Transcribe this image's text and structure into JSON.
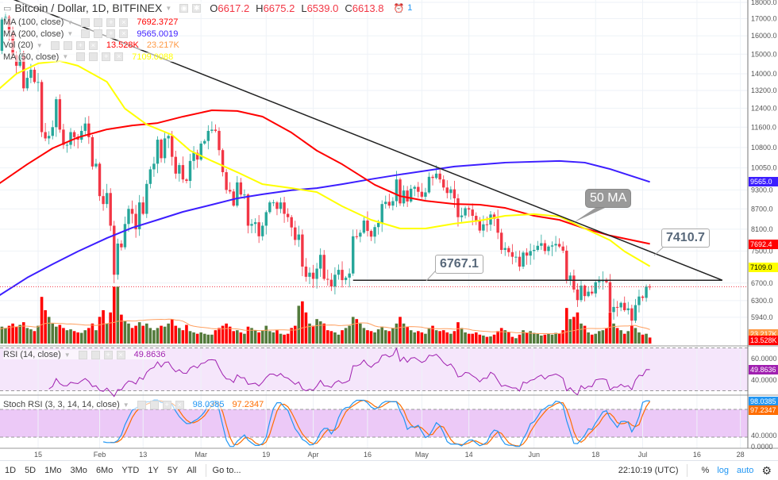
{
  "legend": {
    "symbol": "Bitcoin / Dollar, 1D, BITFINEX",
    "ohlc": {
      "o_label": "O",
      "o": "6617.2",
      "h_label": "H",
      "h": "6675.2",
      "l_label": "L",
      "l": "6539.0",
      "c_label": "C",
      "c": "6613.8"
    },
    "alert_count": "1",
    "indicators": [
      {
        "name": "MA (100, close)",
        "value": "7692.3727",
        "color": "#ff0000"
      },
      {
        "name": "MA (200, close)",
        "value": "9565.0019",
        "color": "#3c1eff"
      },
      {
        "name": "Vol (20)",
        "value": "13.528K",
        "value2": "23.217K",
        "color": "#ff0000",
        "color2": "#ff9944"
      },
      {
        "name": "MA (50, close)",
        "value": "7109.0088",
        "color": "#ffff00"
      }
    ],
    "rsi": {
      "name": "RSI (14, close)",
      "value": "49.8636",
      "color": "#a020b0"
    },
    "stoch": {
      "name": "Stoch RSI (3, 3, 14, 14, close)",
      "k": "98.0385",
      "d": "97.2347",
      "k_color": "#2196f3",
      "d_color": "#ff6d00"
    }
  },
  "price_axis": {
    "ticks": [
      "18000.0",
      "17000.0",
      "16000.0",
      "15000.0",
      "14000.0",
      "13200.0",
      "12400.0",
      "11600.0",
      "10800.0",
      "10050.0",
      "9300.0",
      "8700.0",
      "8100.0",
      "7500.0",
      "6700.0",
      "6300.0",
      "5940.0"
    ],
    "markers": [
      {
        "text": "9565.0",
        "color": "#3c1eff"
      },
      {
        "text": "7692.4",
        "color": "#ff0000"
      },
      {
        "text": "7109.0",
        "color": "#ffff00"
      },
      {
        "text": "23.217K",
        "color": "#ff9944"
      },
      {
        "text": "13.528K",
        "color": "#ff0000"
      }
    ]
  },
  "rsi_axis": {
    "ticks": [
      "60.0000",
      "40.0000"
    ],
    "marker": "49.8636"
  },
  "stoch_axis": {
    "ticks": [
      "40.0000",
      "0.0000"
    ],
    "k_marker": "98.0385",
    "d_marker": "97.2347"
  },
  "time_axis": [
    {
      "label": "15",
      "date": "2018-01-15"
    },
    {
      "label": "Feb",
      "date": "2018-02-01"
    },
    {
      "label": "13",
      "date": "2018-02-13"
    },
    {
      "label": "Mar",
      "date": "2018-03-01"
    },
    {
      "label": "19",
      "date": "2018-03-19"
    },
    {
      "label": "Apr",
      "date": "2018-04-01"
    },
    {
      "label": "16",
      "date": "2018-04-16"
    },
    {
      "label": "May",
      "date": "2018-05-01"
    },
    {
      "label": "14",
      "date": "2018-05-14"
    },
    {
      "label": "Jun",
      "date": "2018-06-01"
    },
    {
      "label": "18",
      "date": "2018-06-18"
    },
    {
      "label": "Jul",
      "date": "2018-07-01"
    },
    {
      "label": "16",
      "date": "2018-07-16"
    },
    {
      "label": "28",
      "date": "2018-07-28"
    }
  ],
  "annotations": {
    "support": "6767.1",
    "trend": "7410.7",
    "ma_note": "50 MA"
  },
  "toolbar": {
    "ranges": [
      "1D",
      "5D",
      "1Mo",
      "3Mo",
      "6Mo",
      "YTD",
      "1Y",
      "5Y",
      "All"
    ],
    "goto": "Go to...",
    "clock": "22:10:19 (UTC)",
    "percent": "%",
    "log": "log",
    "auto": "auto"
  },
  "chart_data": {
    "type": "candlestick",
    "scale": "log",
    "ylim": [
      5800,
      18000
    ],
    "start_date": "2018-01-04",
    "first_open": 15150,
    "closes": [
      15180,
      16950,
      17100,
      16200,
      14950,
      14400,
      14900,
      13300,
      13800,
      14200,
      13600,
      13600,
      11400,
      11150,
      11250,
      11600,
      12800,
      11500,
      10900,
      10900,
      11400,
      11200,
      11100,
      11450,
      11750,
      11200,
      10100,
      10200,
      9100,
      8850,
      9200,
      8200,
      6900,
      7700,
      7600,
      8250,
      8700,
      8550,
      8100,
      8900,
      8550,
      9500,
      10000,
      10200,
      11100,
      10400,
      11150,
      11250,
      10450,
      9850,
      10150,
      9650,
      9600,
      10300,
      10600,
      10350,
      10950,
      11050,
      11450,
      11500,
      11450,
      10700,
      9900,
      9300,
      9250,
      8800,
      9550,
      9150,
      9150,
      8200,
      8250,
      8300,
      7900,
      8200,
      8600,
      8900,
      8900,
      8700,
      8900,
      8550,
      8450,
      8150,
      7800,
      7950,
      7100,
      6850,
      6950,
      6800,
      7050,
      7400,
      6800,
      6780,
      6620,
      6900,
      7020,
      6770,
      6830,
      6930,
      7900,
      7890,
      8000,
      8350,
      8050,
      7890,
      8160,
      8280,
      8850,
      8920,
      8800,
      8940,
      9650,
      8870,
      9280,
      8930,
      9340,
      9400,
      9240,
      9080,
      9220,
      9740,
      9700,
      9850,
      9650,
      9380,
      9200,
      9320,
      9030,
      8450,
      8500,
      8720,
      8680,
      8490,
      8340,
      8060,
      8240,
      8230,
      8530,
      8400,
      8000,
      7530,
      7580,
      7470,
      7350,
      7350,
      7100,
      7460,
      7380,
      7500,
      7530,
      7640,
      7710,
      7500,
      7620,
      7650,
      7690,
      7620,
      7510,
      6780,
      6880,
      6550,
      6310,
      6640,
      6400,
      6500,
      6460,
      6720,
      6750,
      6760,
      6720,
      6050,
      6160,
      6150,
      6250,
      6090,
      6130,
      5870,
      6200,
      6390,
      6360,
      6617.2,
      6613.8
    ],
    "volumes_k": [
      30,
      38,
      35,
      40,
      45,
      38,
      42,
      48,
      35,
      32,
      28,
      40,
      105,
      75,
      60,
      45,
      38,
      42,
      35,
      30,
      32,
      28,
      25,
      24,
      30,
      35,
      45,
      30,
      60,
      75,
      45,
      70,
      128,
      128,
      65,
      50,
      45,
      35,
      40,
      48,
      40,
      45,
      35,
      30,
      35,
      40,
      38,
      45,
      55,
      40,
      35,
      30,
      42,
      28,
      25,
      22,
      25,
      22,
      20,
      20,
      30,
      35,
      40,
      45,
      38,
      28,
      30,
      25,
      22,
      38,
      35,
      30,
      25,
      30,
      40,
      28,
      25,
      30,
      22,
      20,
      22,
      35,
      40,
      85,
      95,
      70,
      45,
      40,
      55,
      50,
      45,
      30,
      28,
      25,
      20,
      30,
      35,
      40,
      60,
      55,
      45,
      35,
      30,
      28,
      25,
      32,
      38,
      30,
      28,
      35,
      45,
      60,
      45,
      38,
      30,
      25,
      28,
      25,
      22,
      35,
      40,
      30,
      28,
      30,
      25,
      22,
      28,
      48,
      35,
      25,
      22,
      22,
      25,
      20,
      18,
      15,
      16,
      20,
      28,
      35,
      30,
      25,
      15,
      12,
      20,
      30,
      25,
      28,
      24,
      22,
      18,
      20,
      22,
      20,
      24,
      22,
      30,
      80,
      55,
      60,
      70,
      45,
      40,
      25,
      20,
      22,
      28,
      30,
      35,
      70,
      45,
      35,
      30,
      22,
      28,
      40,
      35,
      25,
      20,
      22,
      13.528
    ],
    "last_candle": {
      "open": 6617.2,
      "high": 6675.2,
      "low": 6539.0,
      "close": 6613.8
    },
    "ma50": [
      [
        "2018-01-04",
        13240
      ],
      [
        "2018-01-09",
        14000
      ],
      [
        "2018-01-15",
        14520
      ],
      [
        "2018-01-21",
        14640
      ],
      [
        "2018-01-26",
        14400
      ],
      [
        "2018-02-03",
        13610
      ],
      [
        "2018-02-08",
        12380
      ],
      [
        "2018-02-14",
        11710
      ],
      [
        "2018-02-21",
        11290
      ],
      [
        "2018-02-26",
        10680
      ],
      [
        "2018-03-04",
        10300
      ],
      [
        "2018-03-11",
        9900
      ],
      [
        "2018-03-18",
        9490
      ],
      [
        "2018-03-26",
        9360
      ],
      [
        "2018-04-02",
        9230
      ],
      [
        "2018-04-09",
        8780
      ],
      [
        "2018-04-17",
        8370
      ],
      [
        "2018-04-25",
        8120
      ],
      [
        "2018-05-02",
        8120
      ],
      [
        "2018-05-10",
        8260
      ],
      [
        "2018-05-17",
        8350
      ],
      [
        "2018-05-24",
        8490
      ],
      [
        "2018-06-01",
        8540
      ],
      [
        "2018-06-08",
        8470
      ],
      [
        "2018-06-15",
        8120
      ],
      [
        "2018-06-22",
        7790
      ],
      [
        "2018-06-26",
        7490
      ],
      [
        "2018-07-03",
        7109
      ]
    ],
    "ma100": [
      [
        "2018-01-04",
        9490
      ],
      [
        "2018-01-12",
        10180
      ],
      [
        "2018-01-19",
        10770
      ],
      [
        "2018-01-26",
        11190
      ],
      [
        "2018-02-03",
        11510
      ],
      [
        "2018-02-10",
        11670
      ],
      [
        "2018-02-17",
        11770
      ],
      [
        "2018-02-24",
        12040
      ],
      [
        "2018-03-04",
        12310
      ],
      [
        "2018-03-11",
        12280
      ],
      [
        "2018-03-18",
        12040
      ],
      [
        "2018-03-26",
        11380
      ],
      [
        "2018-04-02",
        10680
      ],
      [
        "2018-04-09",
        10180
      ],
      [
        "2018-04-18",
        9470
      ],
      [
        "2018-04-25",
        9100
      ],
      [
        "2018-05-02",
        8950
      ],
      [
        "2018-05-10",
        8850
      ],
      [
        "2018-05-17",
        8830
      ],
      [
        "2018-05-24",
        8730
      ],
      [
        "2018-06-01",
        8490
      ],
      [
        "2018-06-08",
        8370
      ],
      [
        "2018-06-15",
        8120
      ],
      [
        "2018-06-22",
        7920
      ],
      [
        "2018-07-03",
        7692
      ]
    ],
    "ma200": [
      [
        "2018-01-04",
        6400
      ],
      [
        "2018-01-12",
        6830
      ],
      [
        "2018-01-19",
        7160
      ],
      [
        "2018-01-26",
        7490
      ],
      [
        "2018-02-03",
        7850
      ],
      [
        "2018-02-10",
        8140
      ],
      [
        "2018-02-17",
        8370
      ],
      [
        "2018-02-24",
        8610
      ],
      [
        "2018-03-04",
        8830
      ],
      [
        "2018-03-11",
        9030
      ],
      [
        "2018-03-18",
        9160
      ],
      [
        "2018-03-26",
        9290
      ],
      [
        "2018-04-02",
        9360
      ],
      [
        "2018-04-09",
        9490
      ],
      [
        "2018-04-17",
        9660
      ],
      [
        "2018-04-25",
        9820
      ],
      [
        "2018-05-10",
        10100
      ],
      [
        "2018-05-24",
        10240
      ],
      [
        "2018-06-08",
        10300
      ],
      [
        "2018-06-15",
        10240
      ],
      [
        "2018-06-22",
        10010
      ],
      [
        "2018-07-03",
        9565
      ]
    ],
    "drawings": {
      "trendline": [
        [
          "2018-01-07",
          18300
        ],
        [
          "2018-07-23",
          6767.1
        ]
      ],
      "support": [
        [
          "2018-04-12",
          6767.1
        ],
        [
          "2018-07-23",
          6767.1
        ]
      ]
    },
    "colors": {
      "up": "#26a69a",
      "down": "#f23645",
      "vol_up": "#537a3b",
      "vol_down": "#ff0000",
      "ma50": "#ffff00",
      "ma100": "#ff0000",
      "ma200": "#3c1eff",
      "vol_ma": "#ffa060",
      "rsi": "#a020b0",
      "stoch_k": "#2196f3",
      "stoch_d": "#ff6d00"
    }
  }
}
